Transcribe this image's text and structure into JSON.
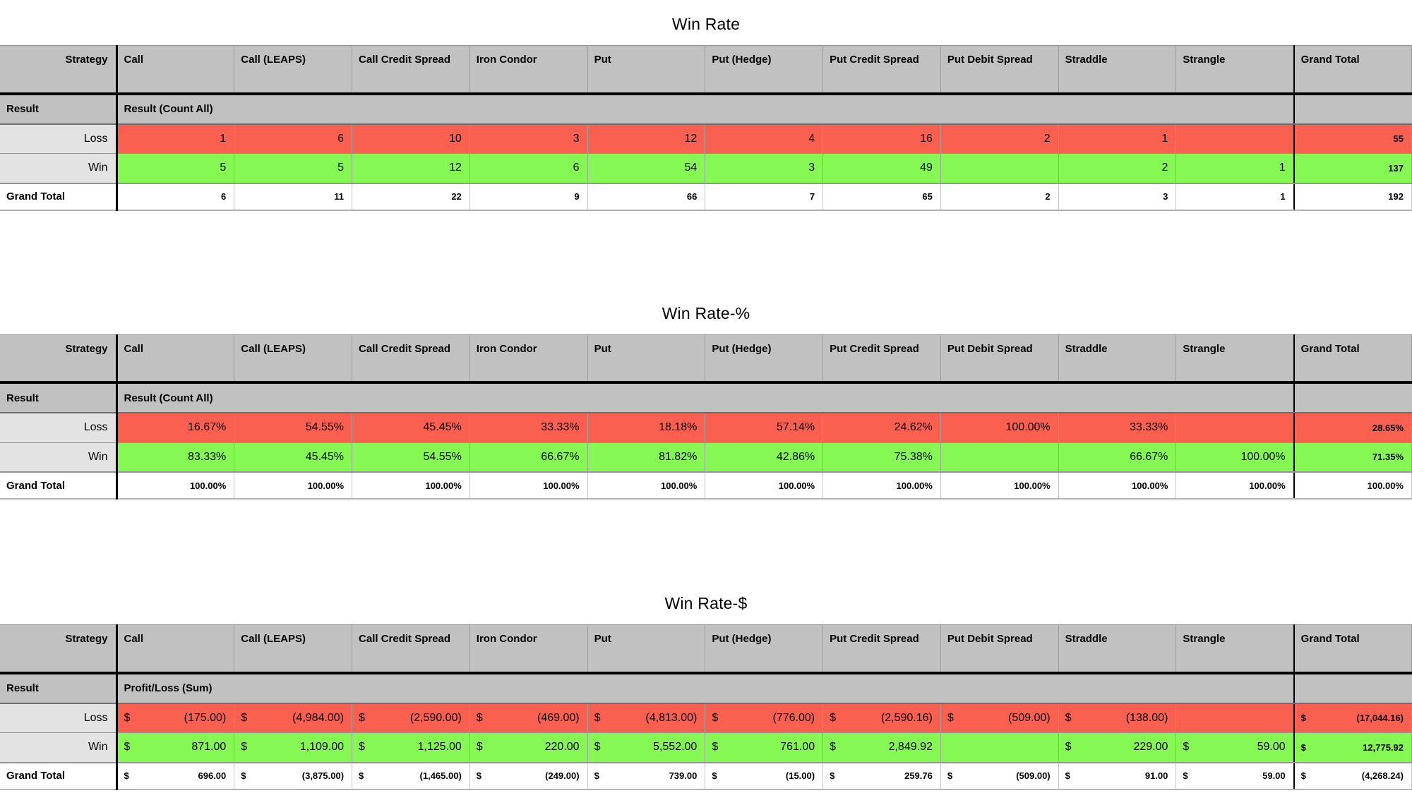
{
  "report": {
    "currency_symbol": "$",
    "columns": [
      "Strategy",
      "Call",
      "Call (LEAPS)",
      "Call Credit Spread",
      "Iron Condor",
      "Put",
      "Put (Hedge)",
      "Put Credit Spread",
      "Put Debit Spread",
      "Straddle",
      "Strangle",
      "Grand Total"
    ],
    "colors": {
      "loss_red": "#FA6050",
      "win_green": "#85F854",
      "header_gray": "#C1C1C1",
      "label_gray": "#E3E3E3",
      "grand_total_bg": "#FFFFFF"
    },
    "tables": [
      {
        "title": "Win Rate",
        "currency": false,
        "result_row": {
          "label": "Result",
          "measure": "Result (Count All)"
        },
        "rows": [
          {
            "label": "Loss",
            "type": "loss",
            "values": [
              "1",
              "6",
              "10",
              "3",
              "12",
              "4",
              "16",
              "2",
              "1",
              "",
              "55"
            ]
          },
          {
            "label": "Win",
            "type": "win",
            "values": [
              "5",
              "5",
              "12",
              "6",
              "54",
              "3",
              "49",
              "",
              "2",
              "1",
              "137"
            ]
          },
          {
            "label": "Grand Total",
            "type": "total",
            "values": [
              "6",
              "11",
              "22",
              "9",
              "66",
              "7",
              "65",
              "2",
              "3",
              "1",
              "192"
            ]
          }
        ]
      },
      {
        "title": "Win Rate-%",
        "currency": false,
        "result_row": {
          "label": "Result",
          "measure": "Result (Count All)"
        },
        "rows": [
          {
            "label": "Loss",
            "type": "loss",
            "values": [
              "16.67%",
              "54.55%",
              "45.45%",
              "33.33%",
              "18.18%",
              "57.14%",
              "24.62%",
              "100.00%",
              "33.33%",
              "",
              "28.65%"
            ]
          },
          {
            "label": "Win",
            "type": "win",
            "values": [
              "83.33%",
              "45.45%",
              "54.55%",
              "66.67%",
              "81.82%",
              "42.86%",
              "75.38%",
              "",
              "66.67%",
              "100.00%",
              "71.35%"
            ]
          },
          {
            "label": "Grand Total",
            "type": "total",
            "values": [
              "100.00%",
              "100.00%",
              "100.00%",
              "100.00%",
              "100.00%",
              "100.00%",
              "100.00%",
              "100.00%",
              "100.00%",
              "100.00%",
              "100.00%"
            ]
          }
        ]
      },
      {
        "title": "Win Rate-$",
        "currency": true,
        "result_row": {
          "label": "Result",
          "measure": "Profit/Loss (Sum)"
        },
        "rows": [
          {
            "label": "Loss",
            "type": "loss",
            "values": [
              "(175.00)",
              "(4,984.00)",
              "(2,590.00)",
              "(469.00)",
              "(4,813.00)",
              "(776.00)",
              "(2,590.16)",
              "(509.00)",
              "(138.00)",
              "",
              "(17,044.16)"
            ]
          },
          {
            "label": "Win",
            "type": "win",
            "values": [
              "871.00",
              "1,109.00",
              "1,125.00",
              "220.00",
              "5,552.00",
              "761.00",
              "2,849.92",
              "",
              "229.00",
              "59.00",
              "12,775.92"
            ]
          },
          {
            "label": "Grand Total",
            "type": "total",
            "values": [
              "696.00",
              "(3,875.00)",
              "(1,465.00)",
              "(249.00)",
              "739.00",
              "(15.00)",
              "259.76",
              "(509.00)",
              "91.00",
              "59.00",
              "(4,268.24)"
            ]
          }
        ]
      }
    ]
  }
}
